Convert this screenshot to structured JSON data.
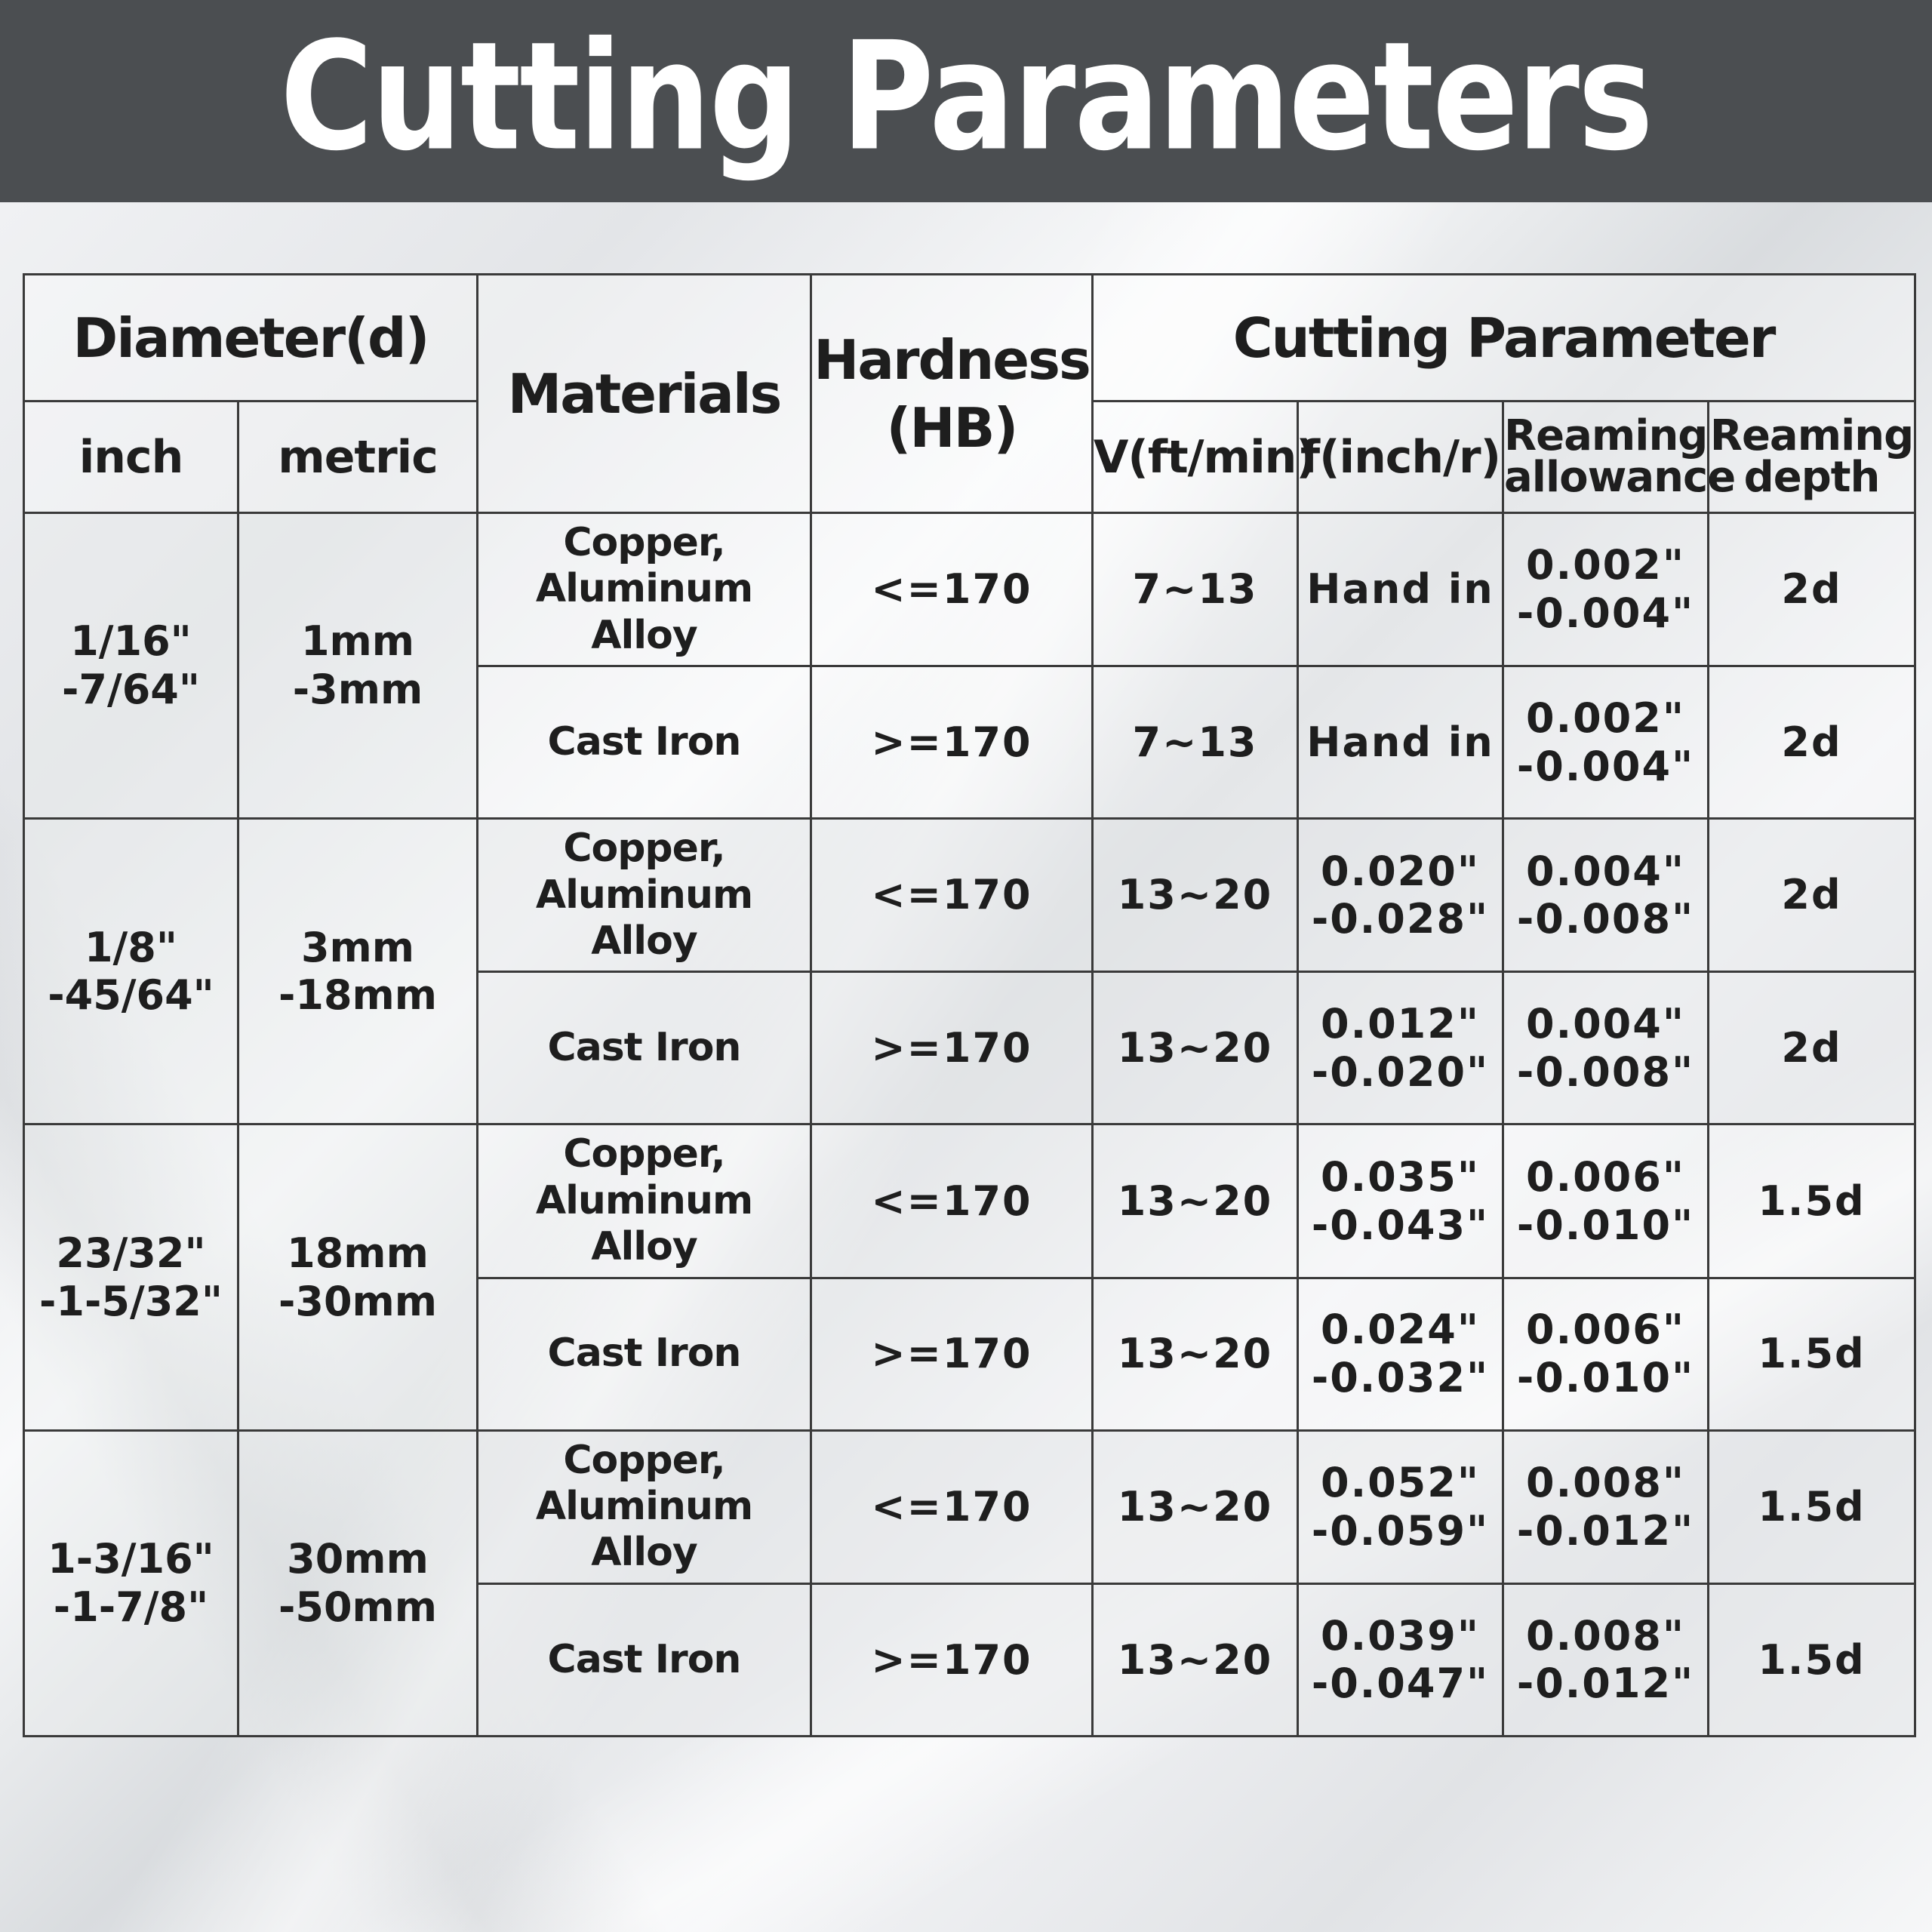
{
  "title": "Cutting Parameters",
  "table": {
    "headers": {
      "diameter": "Diameter(d)",
      "inch": "inch",
      "metric": "metric",
      "materials": "Materials",
      "hardness": "Hardness\n(HB)",
      "cutting_parameter": "Cutting Parameter",
      "v": "V(ft/min)",
      "f": "f(inch/r)",
      "reaming_allowance": "Reaming\nallowance",
      "reaming_depth": "Reaming\ndepth"
    },
    "groups": [
      {
        "inch": "1/16\"\n-7/64\"",
        "metric": "1mm\n-3mm",
        "rows": [
          {
            "material": "Copper,\nAluminum Alloy",
            "hardness": "<=170",
            "v": "7~13",
            "f": "Hand in",
            "allowance": "0.002\"\n-0.004\"",
            "depth": "2d"
          },
          {
            "material": "Cast Iron",
            "hardness": ">=170",
            "v": "7~13",
            "f": "Hand in",
            "allowance": "0.002\"\n-0.004\"",
            "depth": "2d"
          }
        ]
      },
      {
        "inch": "1/8\"\n-45/64\"",
        "metric": "3mm\n-18mm",
        "rows": [
          {
            "material": "Copper,\nAluminum Alloy",
            "hardness": "<=170",
            "v": "13~20",
            "f": "0.020\"\n-0.028\"",
            "allowance": "0.004\"\n-0.008\"",
            "depth": "2d"
          },
          {
            "material": "Cast Iron",
            "hardness": ">=170",
            "v": "13~20",
            "f": "0.012\"\n-0.020\"",
            "allowance": "0.004\"\n-0.008\"",
            "depth": "2d"
          }
        ]
      },
      {
        "inch": "23/32\"\n-1-5/32\"",
        "metric": "18mm\n-30mm",
        "rows": [
          {
            "material": "Copper,\nAluminum Alloy",
            "hardness": "<=170",
            "v": "13~20",
            "f": "0.035\"\n-0.043\"",
            "allowance": "0.006\"\n-0.010\"",
            "depth": "1.5d"
          },
          {
            "material": "Cast Iron",
            "hardness": ">=170",
            "v": "13~20",
            "f": "0.024\"\n-0.032\"",
            "allowance": "0.006\"\n-0.010\"",
            "depth": "1.5d"
          }
        ]
      },
      {
        "inch": "1-3/16\"\n-1-7/8\"",
        "metric": "30mm\n-50mm",
        "rows": [
          {
            "material": "Copper,\nAluminum Alloy",
            "hardness": "<=170",
            "v": "13~20",
            "f": "0.052\"\n-0.059\"",
            "allowance": "0.008\"\n-0.012\"",
            "depth": "1.5d"
          },
          {
            "material": "Cast Iron",
            "hardness": ">=170",
            "v": "13~20",
            "f": "0.039\"\n-0.047\"",
            "allowance": "0.008\"\n-0.012\"",
            "depth": "1.5d"
          }
        ]
      }
    ]
  }
}
